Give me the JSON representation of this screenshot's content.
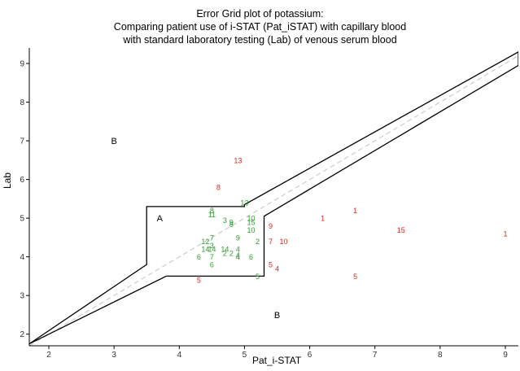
{
  "chart_data": {
    "type": "scatter",
    "title": [
      "Error Grid plot of potassium:",
      "Comparing patient use of i-STAT (Pat_iSTAT) with capillary blood",
      "with standard laboratory testing (Lab) of venous serum blood"
    ],
    "xlabel": "Pat_i-STAT",
    "ylabel": "Lab",
    "xlim": [
      1.7,
      9.2
    ],
    "ylim": [
      1.7,
      9.4
    ],
    "xticks": [
      2,
      3,
      4,
      5,
      6,
      7,
      8,
      9
    ],
    "yticks": [
      2,
      3,
      4,
      5,
      6,
      7,
      8,
      9
    ],
    "grid": false,
    "colors": {
      "inside_zone_a": "#2ca02c",
      "outside_zone_a": "#e0201b",
      "zone_lines": "#000000",
      "identity_line": "#cccccc"
    },
    "zone_a_polygon": [
      [
        3.5,
        3.8
      ],
      [
        3.5,
        5.3
      ],
      [
        5.0,
        5.3
      ],
      [
        5.0,
        5.35
      ],
      [
        9.2,
        9.3
      ],
      [
        9.2,
        8.95
      ],
      [
        5.3,
        5.05
      ],
      [
        5.3,
        3.5
      ],
      [
        3.8,
        3.5
      ],
      [
        1.7,
        1.75
      ]
    ],
    "zone_labels": [
      {
        "text": "A",
        "x": 3.7,
        "y": 5.0
      },
      {
        "text": "B",
        "x": 3.0,
        "y": 7.0
      },
      {
        "text": "B",
        "x": 5.5,
        "y": 2.5
      }
    ],
    "series": [
      {
        "name": "",
        "color": "#2ca02c",
        "points": [
          {
            "x": 4.5,
            "y": 5.1,
            "label": "11"
          },
          {
            "x": 4.5,
            "y": 5.2,
            "label": "8"
          },
          {
            "x": 5.0,
            "y": 5.4,
            "label": "13"
          },
          {
            "x": 4.7,
            "y": 4.95,
            "label": "3"
          },
          {
            "x": 4.8,
            "y": 4.9,
            "label": "9"
          },
          {
            "x": 4.8,
            "y": 4.85,
            "label": "8"
          },
          {
            "x": 5.1,
            "y": 5.0,
            "label": "10"
          },
          {
            "x": 5.1,
            "y": 4.9,
            "label": "15"
          },
          {
            "x": 5.1,
            "y": 4.7,
            "label": "10"
          },
          {
            "x": 4.4,
            "y": 4.4,
            "label": "12"
          },
          {
            "x": 4.5,
            "y": 4.5,
            "label": "7"
          },
          {
            "x": 4.5,
            "y": 4.3,
            "label": "3"
          },
          {
            "x": 4.5,
            "y": 4.2,
            "label": "14"
          },
          {
            "x": 4.4,
            "y": 4.2,
            "label": "14"
          },
          {
            "x": 4.9,
            "y": 4.5,
            "label": "9"
          },
          {
            "x": 5.2,
            "y": 4.4,
            "label": "2"
          },
          {
            "x": 4.7,
            "y": 4.2,
            "label": "14"
          },
          {
            "x": 4.9,
            "y": 4.2,
            "label": "4"
          },
          {
            "x": 4.7,
            "y": 4.1,
            "label": "2"
          },
          {
            "x": 4.8,
            "y": 4.1,
            "label": "2"
          },
          {
            "x": 4.9,
            "y": 4.05,
            "label": "4"
          },
          {
            "x": 4.3,
            "y": 4.0,
            "label": "6"
          },
          {
            "x": 4.5,
            "y": 4.0,
            "label": "7"
          },
          {
            "x": 4.9,
            "y": 4.0,
            "label": "4"
          },
          {
            "x": 5.1,
            "y": 4.0,
            "label": "6"
          },
          {
            "x": 4.5,
            "y": 3.8,
            "label": "6"
          },
          {
            "x": 5.2,
            "y": 3.5,
            "label": "5"
          }
        ]
      },
      {
        "name": "",
        "color": "#e0201b",
        "points": [
          {
            "x": 4.9,
            "y": 6.5,
            "label": "13"
          },
          {
            "x": 4.6,
            "y": 5.8,
            "label": "8"
          },
          {
            "x": 5.4,
            "y": 4.8,
            "label": "9"
          },
          {
            "x": 6.2,
            "y": 5.0,
            "label": "1"
          },
          {
            "x": 6.7,
            "y": 5.2,
            "label": "1"
          },
          {
            "x": 7.4,
            "y": 4.7,
            "label": "15"
          },
          {
            "x": 9.0,
            "y": 4.6,
            "label": "1"
          },
          {
            "x": 5.4,
            "y": 4.4,
            "label": "7"
          },
          {
            "x": 5.6,
            "y": 4.4,
            "label": "10"
          },
          {
            "x": 5.4,
            "y": 3.8,
            "label": "5"
          },
          {
            "x": 5.5,
            "y": 3.7,
            "label": "4"
          },
          {
            "x": 6.7,
            "y": 3.5,
            "label": "5"
          },
          {
            "x": 4.3,
            "y": 3.4,
            "label": "5"
          }
        ]
      }
    ]
  }
}
